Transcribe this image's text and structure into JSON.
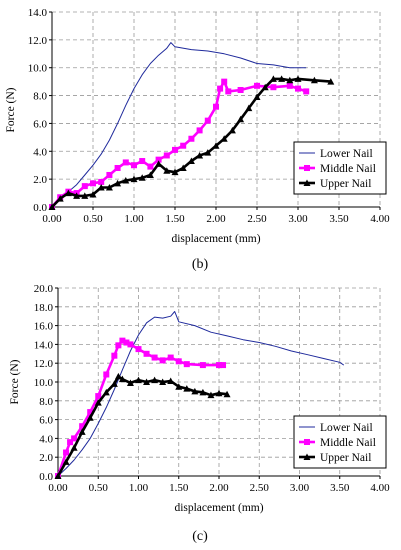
{
  "colors": {
    "lower": "#1f2a9c",
    "middle": "#ff00ff",
    "upper": "#000000",
    "grid": "#9a9a9a"
  },
  "chart_data": [
    {
      "type": "line",
      "panel_label": "(b)",
      "xlabel": "displacement (mm)",
      "ylabel": "Force (N)",
      "xlim": [
        0,
        4
      ],
      "ylim": [
        0,
        14
      ],
      "x_ticks": [
        "0.00",
        "0.50",
        "1.00",
        "1.50",
        "2.00",
        "2.50",
        "3.00",
        "3.50",
        "4.00"
      ],
      "y_ticks": [
        "0.0",
        "2.0",
        "4.0",
        "6.0",
        "8.0",
        "10.0",
        "12.0",
        "14.0"
      ],
      "grid": "dashed",
      "legend_position": "bottom-right",
      "series": [
        {
          "name": "Lower Nail",
          "key": "lower",
          "points": [
            [
              0,
              0
            ],
            [
              0.1,
              0.6
            ],
            [
              0.2,
              1.1
            ],
            [
              0.3,
              1.6
            ],
            [
              0.4,
              2.3
            ],
            [
              0.5,
              3.0
            ],
            [
              0.6,
              3.8
            ],
            [
              0.7,
              4.8
            ],
            [
              0.8,
              6.0
            ],
            [
              0.9,
              7.3
            ],
            [
              1.0,
              8.5
            ],
            [
              1.1,
              9.5
            ],
            [
              1.2,
              10.3
            ],
            [
              1.3,
              10.9
            ],
            [
              1.4,
              11.4
            ],
            [
              1.45,
              11.8
            ],
            [
              1.5,
              11.5
            ],
            [
              1.7,
              11.3
            ],
            [
              1.9,
              11.2
            ],
            [
              2.1,
              11.0
            ],
            [
              2.3,
              10.7
            ],
            [
              2.5,
              10.3
            ],
            [
              2.7,
              10.2
            ],
            [
              2.9,
              10.0
            ],
            [
              3.1,
              10.0
            ]
          ]
        },
        {
          "name": "Middle Nail",
          "key": "middle",
          "points": [
            [
              0,
              0
            ],
            [
              0.1,
              0.7
            ],
            [
              0.2,
              1.1
            ],
            [
              0.3,
              1.0
            ],
            [
              0.4,
              1.5
            ],
            [
              0.5,
              1.7
            ],
            [
              0.6,
              1.8
            ],
            [
              0.7,
              2.3
            ],
            [
              0.8,
              2.8
            ],
            [
              0.9,
              3.2
            ],
            [
              1.0,
              3.0
            ],
            [
              1.1,
              3.3
            ],
            [
              1.2,
              2.9
            ],
            [
              1.3,
              3.4
            ],
            [
              1.4,
              3.7
            ],
            [
              1.5,
              4.1
            ],
            [
              1.6,
              4.4
            ],
            [
              1.7,
              4.9
            ],
            [
              1.8,
              5.5
            ],
            [
              1.9,
              6.2
            ],
            [
              2.0,
              7.2
            ],
            [
              2.05,
              8.5
            ],
            [
              2.1,
              9.0
            ],
            [
              2.15,
              8.3
            ],
            [
              2.3,
              8.4
            ],
            [
              2.5,
              8.7
            ],
            [
              2.7,
              8.6
            ],
            [
              2.9,
              8.7
            ],
            [
              3.0,
              8.5
            ],
            [
              3.1,
              8.3
            ]
          ]
        },
        {
          "name": "Upper Nail",
          "key": "upper",
          "points": [
            [
              0,
              0
            ],
            [
              0.1,
              0.6
            ],
            [
              0.2,
              1.0
            ],
            [
              0.3,
              0.8
            ],
            [
              0.4,
              0.8
            ],
            [
              0.5,
              0.9
            ],
            [
              0.6,
              1.4
            ],
            [
              0.7,
              1.4
            ],
            [
              0.8,
              1.7
            ],
            [
              0.9,
              1.9
            ],
            [
              1.0,
              2.0
            ],
            [
              1.1,
              2.1
            ],
            [
              1.2,
              2.3
            ],
            [
              1.3,
              3.1
            ],
            [
              1.4,
              2.6
            ],
            [
              1.5,
              2.5
            ],
            [
              1.6,
              2.8
            ],
            [
              1.7,
              3.3
            ],
            [
              1.8,
              3.7
            ],
            [
              1.9,
              3.9
            ],
            [
              2.0,
              4.4
            ],
            [
              2.1,
              4.9
            ],
            [
              2.2,
              5.5
            ],
            [
              2.3,
              6.3
            ],
            [
              2.4,
              7.1
            ],
            [
              2.5,
              7.9
            ],
            [
              2.6,
              8.6
            ],
            [
              2.7,
              9.2
            ],
            [
              2.8,
              9.2
            ],
            [
              2.9,
              9.1
            ],
            [
              3.0,
              9.2
            ],
            [
              3.2,
              9.1
            ],
            [
              3.4,
              9.0
            ]
          ]
        }
      ]
    },
    {
      "type": "line",
      "panel_label": "(c)",
      "xlabel": "displacement (mm)",
      "ylabel": "Force (N)",
      "xlim": [
        0,
        4
      ],
      "ylim": [
        0,
        20
      ],
      "x_ticks": [
        "0.00",
        "0.50",
        "1.00",
        "1.50",
        "2.00",
        "2.50",
        "3.00",
        "3.50",
        "4.00"
      ],
      "y_ticks": [
        "0.0",
        "2.0",
        "4.0",
        "6.0",
        "8.0",
        "10.0",
        "12.0",
        "14.0",
        "16.0",
        "18.0",
        "20.0"
      ],
      "grid": "dashed",
      "legend_position": "bottom-right",
      "series": [
        {
          "name": "Lower Nail",
          "key": "lower",
          "points": [
            [
              0,
              0
            ],
            [
              0.1,
              0.8
            ],
            [
              0.2,
              1.7
            ],
            [
              0.3,
              2.8
            ],
            [
              0.4,
              4.0
            ],
            [
              0.5,
              5.6
            ],
            [
              0.6,
              7.3
            ],
            [
              0.7,
              9.2
            ],
            [
              0.8,
              11.3
            ],
            [
              0.9,
              13.3
            ],
            [
              1.0,
              15.0
            ],
            [
              1.1,
              16.3
            ],
            [
              1.2,
              16.9
            ],
            [
              1.3,
              16.8
            ],
            [
              1.4,
              17.0
            ],
            [
              1.45,
              17.5
            ],
            [
              1.5,
              16.4
            ],
            [
              1.7,
              16.0
            ],
            [
              1.9,
              15.3
            ],
            [
              2.1,
              14.9
            ],
            [
              2.3,
              14.5
            ],
            [
              2.5,
              14.2
            ],
            [
              2.7,
              13.8
            ],
            [
              2.9,
              13.3
            ],
            [
              3.1,
              12.9
            ],
            [
              3.3,
              12.5
            ],
            [
              3.5,
              12.1
            ],
            [
              3.55,
              11.8
            ]
          ]
        },
        {
          "name": "Middle Nail",
          "key": "middle",
          "points": [
            [
              0,
              0
            ],
            [
              0.1,
              2.5
            ],
            [
              0.15,
              3.6
            ],
            [
              0.2,
              4.0
            ],
            [
              0.3,
              5.3
            ],
            [
              0.4,
              6.8
            ],
            [
              0.5,
              8.5
            ],
            [
              0.6,
              10.8
            ],
            [
              0.7,
              12.8
            ],
            [
              0.75,
              13.9
            ],
            [
              0.8,
              14.4
            ],
            [
              0.85,
              14.2
            ],
            [
              0.9,
              14.0
            ],
            [
              1.0,
              13.5
            ],
            [
              1.1,
              13.0
            ],
            [
              1.2,
              12.6
            ],
            [
              1.3,
              12.3
            ],
            [
              1.4,
              12.6
            ],
            [
              1.5,
              12.2
            ],
            [
              1.6,
              11.9
            ],
            [
              1.8,
              11.8
            ],
            [
              2.0,
              11.8
            ],
            [
              2.05,
              11.8
            ]
          ]
        },
        {
          "name": "Upper Nail",
          "key": "upper",
          "points": [
            [
              0,
              0
            ],
            [
              0.1,
              1.5
            ],
            [
              0.2,
              3.0
            ],
            [
              0.3,
              4.7
            ],
            [
              0.4,
              6.2
            ],
            [
              0.5,
              7.8
            ],
            [
              0.6,
              8.9
            ],
            [
              0.7,
              9.8
            ],
            [
              0.75,
              10.6
            ],
            [
              0.8,
              10.3
            ],
            [
              0.9,
              9.9
            ],
            [
              1.0,
              10.2
            ],
            [
              1.1,
              10.0
            ],
            [
              1.2,
              10.2
            ],
            [
              1.3,
              10.0
            ],
            [
              1.4,
              10.1
            ],
            [
              1.5,
              9.5
            ],
            [
              1.6,
              9.3
            ],
            [
              1.7,
              9.0
            ],
            [
              1.8,
              8.9
            ],
            [
              1.9,
              8.6
            ],
            [
              2.0,
              8.8
            ],
            [
              2.1,
              8.7
            ]
          ]
        }
      ]
    }
  ]
}
